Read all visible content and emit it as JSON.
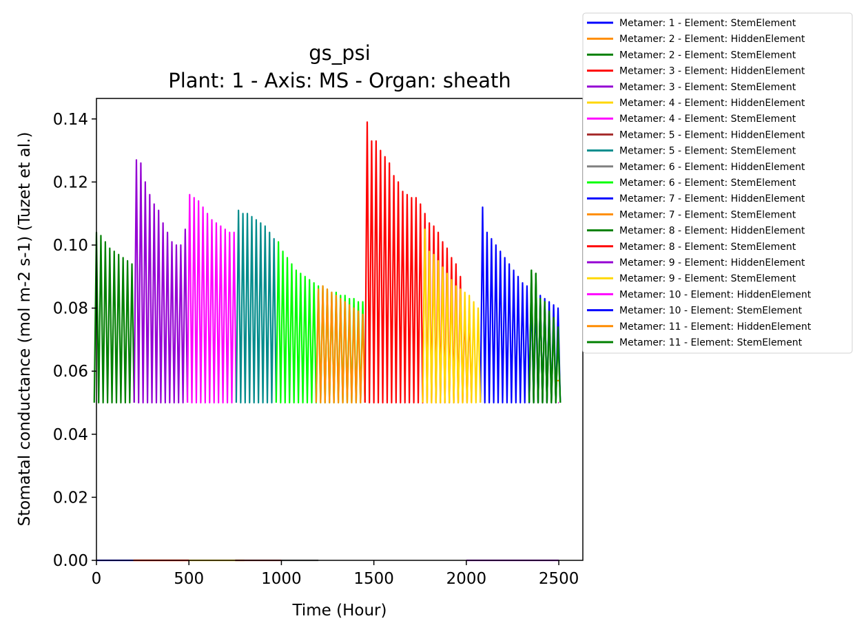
{
  "chart_data": {
    "type": "line",
    "title": "gs_psi",
    "subtitle": "Plant: 1 - Axis: MS - Organ: sheath",
    "xlabel": "Time (Hour)",
    "ylabel": "Stomatal conductance (mol m-2 s-1) (Tuzet et al.)",
    "xlim": [
      0,
      2630
    ],
    "ylim": [
      0,
      0.1465
    ],
    "xticks": [
      0,
      500,
      1000,
      1500,
      2000,
      2500
    ],
    "xtick_labels": [
      "0",
      "500",
      "1000",
      "1500",
      "2000",
      "2500"
    ],
    "yticks": [
      0,
      0.02,
      0.04,
      0.06,
      0.08,
      0.1,
      0.12,
      0.14
    ],
    "ytick_labels": [
      "0.00",
      "0.02",
      "0.04",
      "0.06",
      "0.08",
      "0.10",
      "0.12",
      "0.14"
    ],
    "grid": false,
    "legend_position": "outside-top-right",
    "daily_minimum": 0.05,
    "oscillation_period_hours": 24,
    "series": [
      {
        "name": "Metamer: 1 - Element: StemElement",
        "color": "#0000ff",
        "x": [
          0,
          200
        ],
        "y": [
          0,
          0
        ]
      },
      {
        "name": "Metamer: 2 - Element: HiddenElement",
        "color": "#ff8c00",
        "x": [
          200,
          500
        ],
        "y": [
          0,
          0
        ]
      },
      {
        "name": "Metamer: 2 - Element: StemElement",
        "color": "#008000",
        "x": [
          0,
          24,
          48,
          72,
          96,
          120,
          144,
          168,
          192
        ],
        "y": [
          0.104,
          0.103,
          0.101,
          0.099,
          0.098,
          0.097,
          0.096,
          0.095,
          0.094
        ]
      },
      {
        "name": "Metamer: 3 - Element: HiddenElement",
        "color": "#ff0000",
        "x": [
          200,
          500
        ],
        "y": [
          0,
          0
        ]
      },
      {
        "name": "Metamer: 3 - Element: StemElement",
        "color": "#9400d3",
        "x": [
          216,
          240,
          264,
          288,
          312,
          336,
          360,
          384,
          408,
          432,
          456,
          480
        ],
        "y": [
          0.127,
          0.126,
          0.12,
          0.116,
          0.113,
          0.111,
          0.107,
          0.104,
          0.101,
          0.1,
          0.1,
          0.105
        ]
      },
      {
        "name": "Metamer: 4 - Element: HiddenElement",
        "color": "#ffd700",
        "x": [
          500,
          800
        ],
        "y": [
          0,
          0
        ]
      },
      {
        "name": "Metamer: 4 - Element: StemElement",
        "color": "#ff00ff",
        "x": [
          504,
          528,
          552,
          576,
          600,
          624,
          648,
          672,
          696,
          720,
          744
        ],
        "y": [
          0.116,
          0.115,
          0.114,
          0.112,
          0.11,
          0.108,
          0.107,
          0.106,
          0.105,
          0.104,
          0.104
        ]
      },
      {
        "name": "Metamer: 5 - Element: HiddenElement",
        "color": "#a52a2a",
        "x": [
          750,
          1000
        ],
        "y": [
          0,
          0
        ]
      },
      {
        "name": "Metamer: 5 - Element: StemElement",
        "color": "#008b8b",
        "x": [
          768,
          792,
          816,
          840,
          864,
          888,
          912,
          936,
          960
        ],
        "y": [
          0.111,
          0.11,
          0.11,
          0.109,
          0.108,
          0.107,
          0.106,
          0.104,
          0.102
        ]
      },
      {
        "name": "Metamer: 6 - Element: HiddenElement",
        "color": "#808080",
        "x": [
          1000,
          1200
        ],
        "y": [
          0,
          0
        ]
      },
      {
        "name": "Metamer: 6 - Element: StemElement",
        "color": "#00ff00",
        "x": [
          984,
          1008,
          1032,
          1056,
          1080,
          1104,
          1128,
          1152,
          1176,
          1200,
          1224,
          1248,
          1272,
          1296,
          1320,
          1344,
          1368,
          1392,
          1416,
          1440
        ],
        "y": [
          0.101,
          0.098,
          0.096,
          0.094,
          0.092,
          0.091,
          0.09,
          0.089,
          0.088,
          0.087,
          0.087,
          0.086,
          0.085,
          0.085,
          0.084,
          0.084,
          0.083,
          0.083,
          0.082,
          0.082
        ]
      },
      {
        "name": "Metamer: 7 - Element: HiddenElement",
        "color": "#0000ff",
        "x": [
          2088,
          2112,
          2136,
          2160,
          2184,
          2208,
          2232,
          2256,
          2280,
          2304,
          2328,
          2352,
          2376,
          2400,
          2424,
          2448,
          2472,
          2496
        ],
        "y": [
          0.112,
          0.104,
          0.102,
          0.1,
          0.098,
          0.096,
          0.094,
          0.092,
          0.09,
          0.088,
          0.087,
          0.085,
          0.084,
          0.084,
          0.083,
          0.082,
          0.081,
          0.08
        ]
      },
      {
        "name": "Metamer: 7 - Element: StemElement",
        "color": "#ff8c00",
        "x": [
          1200,
          1224,
          1248,
          1272,
          1296,
          1320,
          1344,
          1368,
          1392,
          1416,
          1440
        ],
        "y": [
          0.086,
          0.087,
          0.086,
          0.085,
          0.084,
          0.083,
          0.082,
          0.081,
          0.08,
          0.079,
          0.078
        ]
      },
      {
        "name": "Metamer: 8 - Element: HiddenElement",
        "color": "#008000",
        "x": [
          2352,
          2376,
          2400,
          2424,
          2448,
          2472,
          2496
        ],
        "y": [
          0.092,
          0.091,
          0.083,
          0.082,
          0.079,
          0.077,
          0.074
        ]
      },
      {
        "name": "Metamer: 8 - Element: StemElement",
        "color": "#ff0000",
        "x": [
          1464,
          1488,
          1512,
          1536,
          1560,
          1584,
          1608,
          1632,
          1656,
          1680,
          1704,
          1728,
          1752,
          1776,
          1800,
          1824,
          1848,
          1872,
          1896,
          1920,
          1944,
          1968,
          1992,
          2016
        ],
        "y": [
          0.139,
          0.133,
          0.133,
          0.13,
          0.128,
          0.126,
          0.122,
          0.12,
          0.117,
          0.116,
          0.115,
          0.115,
          0.113,
          0.11,
          0.107,
          0.106,
          0.104,
          0.101,
          0.099,
          0.096,
          0.094,
          0.09,
          0.081,
          0.081
        ]
      },
      {
        "name": "Metamer: 9 - Element: HiddenElement",
        "color": "#9400d3",
        "x": [
          2000,
          2500
        ],
        "y": [
          0,
          0
        ]
      },
      {
        "name": "Metamer: 9 - Element: StemElement",
        "color": "#ffd700",
        "x": [
          1776,
          1800,
          1824,
          1848,
          1872,
          1896,
          1920,
          1944,
          1968,
          1992,
          2016,
          2040,
          2064
        ],
        "y": [
          0.105,
          0.098,
          0.097,
          0.095,
          0.093,
          0.091,
          0.089,
          0.087,
          0.086,
          0.085,
          0.084,
          0.082,
          0.08
        ]
      },
      {
        "name": "Metamer: 10 - Element: HiddenElement",
        "color": "#ff00ff",
        "x": [
          2496,
          2500
        ],
        "y": [
          0.05,
          0.05
        ]
      },
      {
        "name": "Metamer: 10 - Element: StemElement",
        "color": "#0000ff",
        "x": [
          2496,
          2500
        ],
        "y": [
          0.065,
          0.065
        ]
      },
      {
        "name": "Metamer: 11 - Element: HiddenElement",
        "color": "#ff8c00",
        "x": [
          2480,
          2500
        ],
        "y": [
          0.057,
          0.057
        ]
      },
      {
        "name": "Metamer: 11 - Element: StemElement",
        "color": "#008000",
        "x": [
          2352,
          2376,
          2400,
          2424,
          2448,
          2472,
          2496
        ],
        "y": [
          0.092,
          0.091,
          0.083,
          0.082,
          0.079,
          0.077,
          0.072
        ]
      }
    ]
  }
}
